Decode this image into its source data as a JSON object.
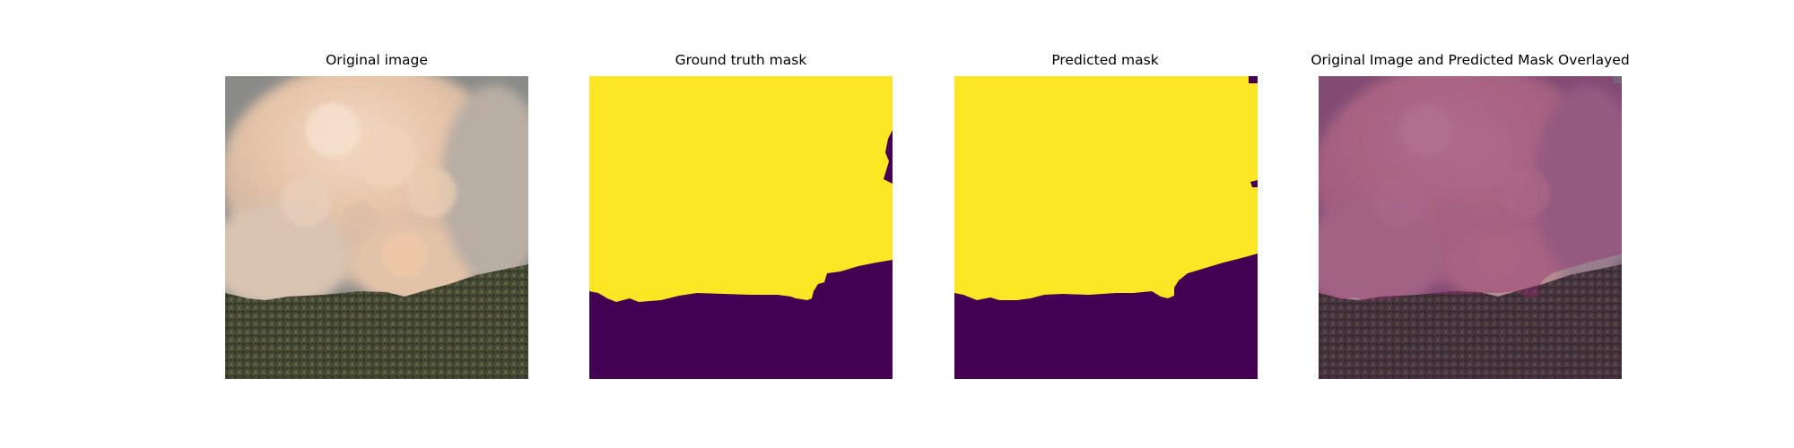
{
  "figure": {
    "titles": {
      "original": "Original image",
      "ground_truth": "Ground truth mask",
      "predicted": "Predicted mask",
      "overlay": "Original Image and Predicted Mask Overlayed"
    },
    "colors": {
      "mask_foreground": "#fde725",
      "mask_background": "#440154",
      "overlay_tint": "#440154"
    }
  }
}
